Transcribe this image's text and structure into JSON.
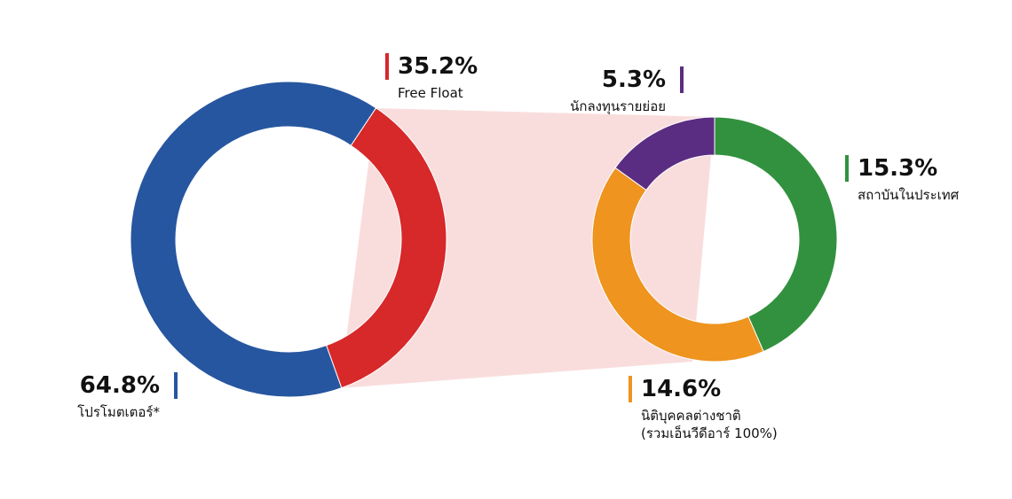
{
  "chart_data": [
    {
      "type": "donut",
      "categories": [
        "โปรโมตเตอร์*",
        "Free Float"
      ],
      "values": [
        64.8,
        35.2
      ],
      "value_labels": [
        "64.8%",
        "35.2%"
      ],
      "colors": [
        "#2756a0",
        "#d7282a"
      ]
    },
    {
      "type": "donut",
      "categories": [
        "สถาบันในประเทศ",
        "นิติบุคคลต่างชาติ\n(รวมเอ็นวีดีอาร์ 100%)",
        "นักลงทุนรายย่อย"
      ],
      "values": [
        15.3,
        14.6,
        5.3
      ],
      "value_labels": [
        "15.3%",
        "14.6%",
        "5.3%"
      ],
      "colors": [
        "#32913e",
        "#ee941f",
        "#5a2d82"
      ]
    }
  ]
}
